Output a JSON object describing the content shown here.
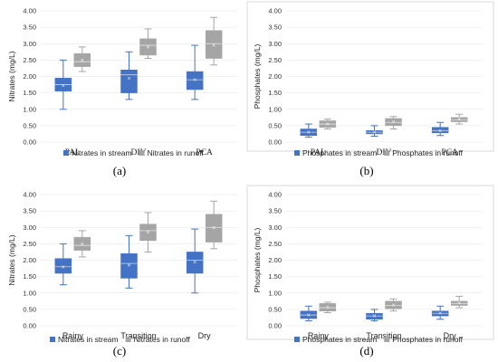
{
  "colors": {
    "stream": "#4472C4",
    "runoff": "#A5A5A5"
  },
  "chart_data": [
    {
      "type": "box",
      "panel_label": "(a)",
      "ylabel": "Nitrates (mg/L)",
      "ylim": [
        0,
        4
      ],
      "ytick_step": 0.5,
      "tick_decimals": 2,
      "categories": [
        "PAL",
        "DIV",
        "PCA"
      ],
      "category_font": "serif",
      "legend": "bottom",
      "series": [
        {
          "name": "Nitrates in stream",
          "color_key": "stream",
          "boxes": [
            {
              "min": 1.0,
              "q1": 1.55,
              "median": 1.75,
              "q3": 1.95,
              "max": 2.5,
              "mean": 1.72
            },
            {
              "min": 1.3,
              "q1": 1.5,
              "median": 2.05,
              "q3": 2.2,
              "max": 2.75,
              "mean": 1.95
            },
            {
              "min": 1.3,
              "q1": 1.6,
              "median": 1.9,
              "q3": 2.15,
              "max": 2.95,
              "mean": 1.9
            }
          ]
        },
        {
          "name": "Nitrates in runoff",
          "color_key": "runoff",
          "boxes": [
            {
              "min": 2.15,
              "q1": 2.3,
              "median": 2.45,
              "q3": 2.7,
              "max": 2.9,
              "mean": 2.5
            },
            {
              "min": 2.55,
              "q1": 2.65,
              "median": 2.95,
              "q3": 3.15,
              "max": 3.45,
              "mean": 2.9
            },
            {
              "min": 2.35,
              "q1": 2.55,
              "median": 3.0,
              "q3": 3.4,
              "max": 3.8,
              "mean": 2.95
            }
          ]
        }
      ]
    },
    {
      "type": "box",
      "panel_label": "(b)",
      "ylabel": "Phosphates  (mg/L)",
      "ylim": [
        0,
        4
      ],
      "ytick_step": 0.5,
      "tick_decimals": 2,
      "categories": [
        "PAL",
        "DIV",
        "PCA"
      ],
      "category_font": "serif",
      "legend": "bottom",
      "series": [
        {
          "name": "Phosphates in stream",
          "color_key": "stream",
          "boxes": [
            {
              "min": 0.15,
              "q1": 0.2,
              "median": 0.3,
              "q3": 0.4,
              "max": 0.55,
              "mean": 0.3
            },
            {
              "min": 0.18,
              "q1": 0.25,
              "median": 0.3,
              "q3": 0.35,
              "max": 0.5,
              "mean": 0.3
            },
            {
              "min": 0.2,
              "q1": 0.28,
              "median": 0.35,
              "q3": 0.45,
              "max": 0.6,
              "mean": 0.35
            }
          ]
        },
        {
          "name": "Phosphates in runoff",
          "color_key": "runoff",
          "boxes": [
            {
              "min": 0.4,
              "q1": 0.45,
              "median": 0.55,
              "q3": 0.65,
              "max": 0.7,
              "mean": 0.55
            },
            {
              "min": 0.4,
              "q1": 0.5,
              "median": 0.6,
              "q3": 0.72,
              "max": 0.78,
              "mean": 0.62
            },
            {
              "min": 0.55,
              "q1": 0.62,
              "median": 0.68,
              "q3": 0.75,
              "max": 0.85,
              "mean": 0.7
            }
          ]
        }
      ]
    },
    {
      "type": "box",
      "panel_label": "(c)",
      "ylabel": "Nitrates (mg/L)",
      "ylim": [
        0,
        4
      ],
      "ytick_step": 0.5,
      "tick_decimals": 2,
      "categories": [
        "Rainy",
        "Transition",
        "Dry"
      ],
      "category_font": "sans",
      "legend": "bottom",
      "series": [
        {
          "name": "Nitrates in stream",
          "color_key": "stream",
          "boxes": [
            {
              "min": 1.25,
              "q1": 1.6,
              "median": 1.8,
              "q3": 2.05,
              "max": 2.5,
              "mean": 1.8
            },
            {
              "min": 1.15,
              "q1": 1.45,
              "median": 1.9,
              "q3": 2.2,
              "max": 2.75,
              "mean": 1.85
            },
            {
              "min": 1.0,
              "q1": 1.6,
              "median": 2.0,
              "q3": 2.25,
              "max": 2.95,
              "mean": 1.95
            }
          ]
        },
        {
          "name": "Nitrates in runoff",
          "color_key": "runoff",
          "boxes": [
            {
              "min": 2.1,
              "q1": 2.3,
              "median": 2.45,
              "q3": 2.7,
              "max": 2.9,
              "mean": 2.5
            },
            {
              "min": 2.25,
              "q1": 2.6,
              "median": 2.9,
              "q3": 3.1,
              "max": 3.45,
              "mean": 2.85
            },
            {
              "min": 2.35,
              "q1": 2.55,
              "median": 3.0,
              "q3": 3.4,
              "max": 3.8,
              "mean": 3.0
            }
          ]
        }
      ]
    },
    {
      "type": "box",
      "panel_label": "(d)",
      "ylabel": "Phosphates (mg/L)",
      "ylim": [
        0,
        4
      ],
      "ytick_step": 0.5,
      "tick_decimals": 2,
      "categories": [
        "Rainy",
        "Transition",
        "Dry"
      ],
      "category_font": "sans",
      "legend": "bottom",
      "series": [
        {
          "name": "Phosphates in stream",
          "color_key": "stream",
          "boxes": [
            {
              "min": 0.15,
              "q1": 0.22,
              "median": 0.33,
              "q3": 0.45,
              "max": 0.6,
              "mean": 0.33
            },
            {
              "min": 0.15,
              "q1": 0.2,
              "median": 0.3,
              "q3": 0.38,
              "max": 0.5,
              "mean": 0.3
            },
            {
              "min": 0.2,
              "q1": 0.3,
              "median": 0.38,
              "q3": 0.45,
              "max": 0.6,
              "mean": 0.38
            }
          ]
        },
        {
          "name": "Phosphates in runoff",
          "color_key": "runoff",
          "boxes": [
            {
              "min": 0.4,
              "q1": 0.45,
              "median": 0.55,
              "q3": 0.68,
              "max": 0.72,
              "mean": 0.56
            },
            {
              "min": 0.45,
              "q1": 0.52,
              "median": 0.62,
              "q3": 0.75,
              "max": 0.82,
              "mean": 0.63
            },
            {
              "min": 0.55,
              "q1": 0.62,
              "median": 0.68,
              "q3": 0.75,
              "max": 0.9,
              "mean": 0.7
            }
          ]
        }
      ]
    }
  ]
}
